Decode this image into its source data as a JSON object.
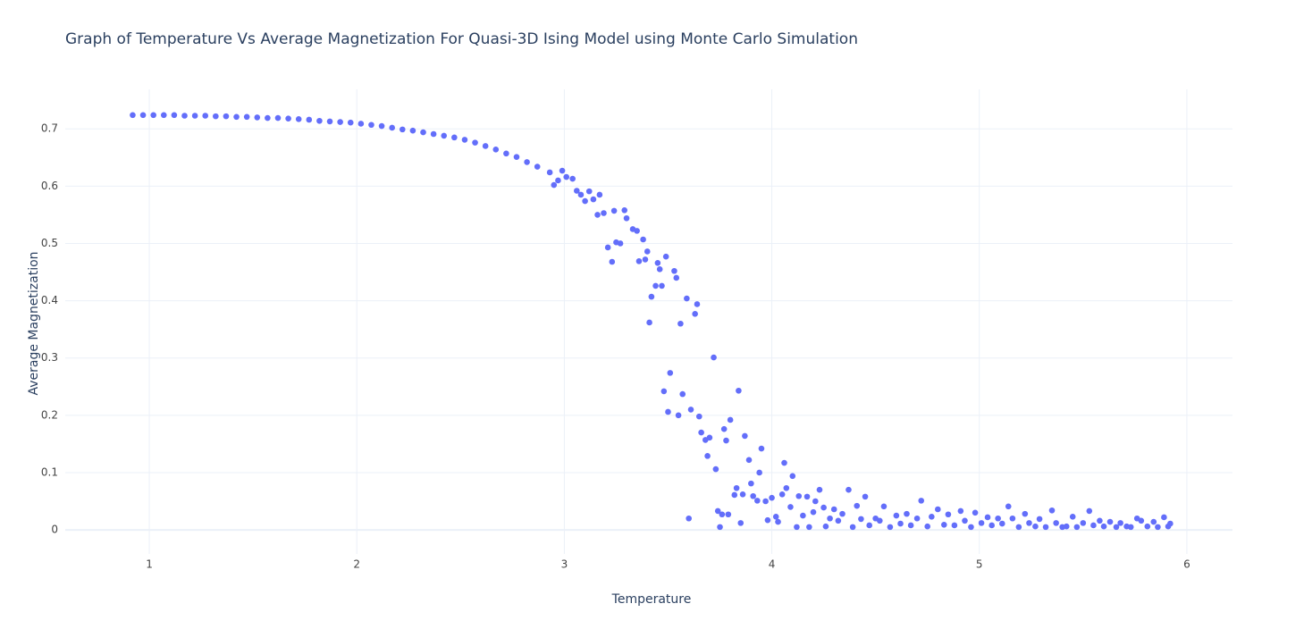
{
  "chart_data": {
    "type": "scatter",
    "title": "Graph of Temperature Vs Average Magnetization For Quasi-3D Ising Model using Monte Carlo Simulation",
    "x_label": "Temperature",
    "y_label": "Average Magnetization",
    "xlim": [
      0.595,
      6.22
    ],
    "ylim": [
      -0.042,
      0.769
    ],
    "xticks": [
      1,
      2,
      3,
      4,
      5,
      6
    ],
    "yticks": [
      0,
      0.1,
      0.2,
      0.3,
      0.4,
      0.5,
      0.6,
      0.7
    ],
    "grid": true,
    "color": "#636efa",
    "x": [
      0.92,
      0.97,
      1.02,
      1.07,
      1.12,
      1.17,
      1.22,
      1.27,
      1.32,
      1.37,
      1.42,
      1.47,
      1.52,
      1.57,
      1.62,
      1.67,
      1.72,
      1.77,
      1.82,
      1.87,
      1.92,
      1.97,
      2.02,
      2.07,
      2.12,
      2.17,
      2.22,
      2.27,
      2.32,
      2.37,
      2.42,
      2.47,
      2.52,
      2.57,
      2.62,
      2.67,
      2.72,
      2.77,
      2.82,
      2.87,
      2.93,
      2.95,
      2.97,
      2.99,
      3.01,
      3.04,
      3.06,
      3.08,
      3.1,
      3.12,
      3.14,
      3.16,
      3.17,
      3.19,
      3.21,
      3.23,
      3.24,
      3.25,
      3.27,
      3.29,
      3.3,
      3.33,
      3.35,
      3.36,
      3.38,
      3.39,
      3.4,
      3.41,
      3.42,
      3.44,
      3.45,
      3.46,
      3.47,
      3.48,
      3.49,
      3.5,
      3.51,
      3.53,
      3.54,
      3.55,
      3.56,
      3.57,
      3.59,
      3.6,
      3.61,
      3.63,
      3.64,
      3.65,
      3.66,
      3.68,
      3.69,
      3.7,
      3.72,
      3.73,
      3.74,
      3.75,
      3.76,
      3.77,
      3.78,
      3.79,
      3.8,
      3.82,
      3.83,
      3.84,
      3.85,
      3.86,
      3.87,
      3.89,
      3.9,
      3.91,
      3.93,
      3.94,
      3.95,
      3.97,
      3.98,
      4.0,
      4.02,
      4.03,
      4.05,
      4.06,
      4.07,
      4.09,
      4.1,
      4.12,
      4.13,
      4.15,
      4.17,
      4.18,
      4.2,
      4.21,
      4.23,
      4.25,
      4.26,
      4.28,
      4.3,
      4.32,
      4.34,
      4.37,
      4.39,
      4.41,
      4.43,
      4.45,
      4.47,
      4.5,
      4.52,
      4.54,
      4.57,
      4.6,
      4.62,
      4.65,
      4.67,
      4.7,
      4.72,
      4.75,
      4.77,
      4.8,
      4.83,
      4.85,
      4.88,
      4.91,
      4.93,
      4.96,
      4.98,
      5.01,
      5.04,
      5.06,
      5.09,
      5.11,
      5.14,
      5.16,
      5.19,
      5.22,
      5.24,
      5.27,
      5.29,
      5.32,
      5.35,
      5.37,
      5.4,
      5.42,
      5.45,
      5.47,
      5.5,
      5.53,
      5.55,
      5.58,
      5.6,
      5.63,
      5.66,
      5.68,
      5.71,
      5.73,
      5.76,
      5.78,
      5.81,
      5.84,
      5.86,
      5.89,
      5.91,
      5.92
    ],
    "values": [
      0.724,
      0.724,
      0.724,
      0.724,
      0.724,
      0.723,
      0.723,
      0.723,
      0.722,
      0.722,
      0.721,
      0.721,
      0.72,
      0.719,
      0.719,
      0.718,
      0.717,
      0.716,
      0.714,
      0.713,
      0.712,
      0.711,
      0.709,
      0.707,
      0.705,
      0.702,
      0.699,
      0.697,
      0.694,
      0.691,
      0.688,
      0.685,
      0.681,
      0.676,
      0.67,
      0.664,
      0.657,
      0.651,
      0.642,
      0.634,
      0.624,
      0.602,
      0.61,
      0.627,
      0.616,
      0.613,
      0.592,
      0.585,
      0.574,
      0.591,
      0.577,
      0.55,
      0.585,
      0.553,
      0.493,
      0.468,
      0.557,
      0.502,
      0.5,
      0.558,
      0.544,
      0.525,
      0.522,
      0.469,
      0.507,
      0.472,
      0.486,
      0.362,
      0.407,
      0.426,
      0.466,
      0.455,
      0.426,
      0.242,
      0.477,
      0.206,
      0.274,
      0.452,
      0.44,
      0.2,
      0.36,
      0.237,
      0.404,
      0.02,
      0.21,
      0.377,
      0.394,
      0.198,
      0.17,
      0.157,
      0.129,
      0.161,
      0.301,
      0.106,
      0.033,
      0.005,
      0.027,
      0.176,
      0.156,
      0.027,
      0.192,
      0.061,
      0.073,
      0.243,
      0.012,
      0.062,
      0.164,
      0.122,
      0.081,
      0.059,
      0.051,
      0.1,
      0.142,
      0.05,
      0.017,
      0.056,
      0.023,
      0.014,
      0.062,
      0.117,
      0.073,
      0.04,
      0.094,
      0.005,
      0.059,
      0.025,
      0.058,
      0.005,
      0.031,
      0.05,
      0.07,
      0.039,
      0.006,
      0.02,
      0.036,
      0.016,
      0.028,
      0.07,
      0.005,
      0.042,
      0.019,
      0.058,
      0.008,
      0.02,
      0.016,
      0.041,
      0.005,
      0.025,
      0.011,
      0.028,
      0.008,
      0.02,
      0.051,
      0.006,
      0.023,
      0.036,
      0.009,
      0.027,
      0.008,
      0.033,
      0.016,
      0.005,
      0.03,
      0.012,
      0.022,
      0.008,
      0.02,
      0.011,
      0.041,
      0.02,
      0.005,
      0.028,
      0.012,
      0.006,
      0.019,
      0.005,
      0.034,
      0.012,
      0.005,
      0.006,
      0.023,
      0.005,
      0.012,
      0.033,
      0.008,
      0.016,
      0.006,
      0.014,
      0.005,
      0.012,
      0.006,
      0.005,
      0.02,
      0.016,
      0.006,
      0.014,
      0.005,
      0.022,
      0.006,
      0.011
    ]
  }
}
